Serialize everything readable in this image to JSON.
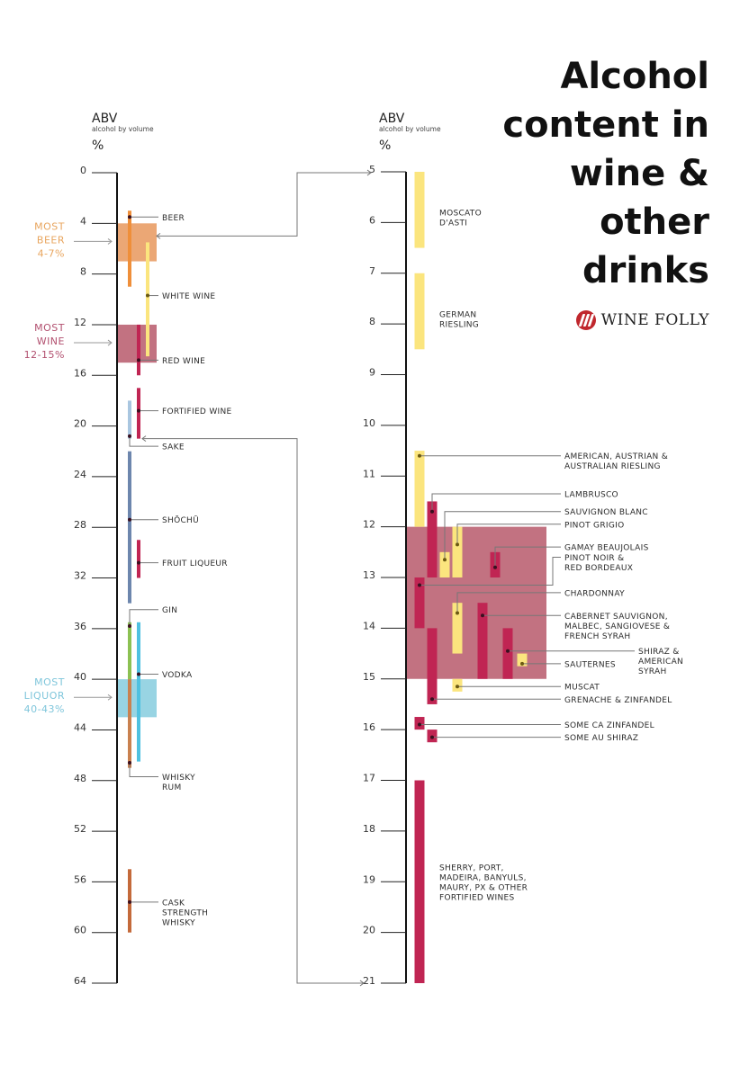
{
  "title_lines": [
    "Alcohol",
    "content in",
    "wine &",
    "other",
    "drinks"
  ],
  "brand": "WINE FOLLY",
  "colors": {
    "axis": "#111111",
    "leader": "#777777",
    "beer": "#ef8f3a",
    "beer_band": "#eba775",
    "white_wine": "#fbe57e",
    "red_wine": "#c02553",
    "wine_band": "#c27281",
    "sake": "#a9c6e0",
    "shochu": "#6d86ad",
    "gin": "#8cc152",
    "vodka": "#4fc1e0",
    "liquor_band": "#98d4e3",
    "whisky": "#c9814f",
    "cask": "#c46a3b",
    "most_beer_text": "#e8a55e",
    "most_wine_text": "#b2506f",
    "most_liquor_text": "#7fc6db",
    "logo": "#c0272d"
  },
  "chart_data": [
    {
      "type": "range-bar",
      "name": "all-drinks",
      "axis_header": {
        "title": "ABV",
        "subtitle": "alcohol by volume",
        "unit": "%"
      },
      "ylim": [
        0,
        64
      ],
      "ticks": [
        0,
        4,
        8,
        12,
        16,
        20,
        24,
        28,
        32,
        36,
        40,
        44,
        48,
        52,
        56,
        60,
        64
      ],
      "bands": [
        {
          "label_lines": [
            "MOST",
            "BEER",
            "4-7%"
          ],
          "range": [
            4,
            7
          ],
          "color_key": "beer_band",
          "text_color_key": "most_beer_text"
        },
        {
          "label_lines": [
            "MOST",
            "WINE",
            "12-15%"
          ],
          "range": [
            12,
            15
          ],
          "color_key": "wine_band",
          "text_color_key": "most_wine_text"
        },
        {
          "label_lines": [
            "MOST",
            "LIQUOR",
            "40-43%"
          ],
          "range": [
            40,
            43
          ],
          "color_key": "liquor_band",
          "text_color_key": "most_liquor_text"
        }
      ],
      "series": [
        {
          "label": [
            "BEER"
          ],
          "range": [
            3,
            9
          ],
          "col": 0,
          "color_key": "beer",
          "dot": 3.5,
          "label_at": 3.5
        },
        {
          "label": [
            "WHITE WINE"
          ],
          "range": [
            5.5,
            14.5
          ],
          "col": 1,
          "color_key": "white_wine",
          "dot": 9.7,
          "label_at": 9.7
        },
        {
          "label": [
            "RED WINE"
          ],
          "range": [
            12,
            16
          ],
          "col": 2,
          "color_key": "red_wine",
          "dot": 14.8,
          "label_at": 14.8
        },
        {
          "label": [
            "FORTIFIED WINE"
          ],
          "range": [
            17,
            21
          ],
          "col": 2,
          "color_key": "red_wine",
          "dot": 18.8,
          "label_at": 18.8
        },
        {
          "label": [
            "SAKE"
          ],
          "range": [
            18,
            21
          ],
          "col": 0,
          "color_key": "sake",
          "dot": 20.8,
          "label_at": 21.6,
          "elbow": true
        },
        {
          "label": [
            "SHŌCHŪ"
          ],
          "range": [
            22,
            34
          ],
          "col": 0,
          "color_key": "shochu",
          "dot": 27.4,
          "label_at": 27.4
        },
        {
          "label": [
            "FRUIT LIQUEUR"
          ],
          "range": [
            29,
            32
          ],
          "col": 2,
          "color_key": "red_wine",
          "dot": 30.8,
          "label_at": 30.8
        },
        {
          "label": [
            "GIN"
          ],
          "range": [
            35.5,
            47
          ],
          "col": 0,
          "color_key": "gin",
          "dot": 35.8,
          "label_at": 34.5,
          "elbow": true,
          "split_at": 40,
          "split_color_key": "whisky"
        },
        {
          "label": [
            "VODKA"
          ],
          "range": [
            35.5,
            46.5
          ],
          "col": 2,
          "color_key": "vodka",
          "dot": 39.6,
          "label_at": 39.6
        },
        {
          "label": [
            "WHISKY",
            "RUM"
          ],
          "range": [
            40,
            47
          ],
          "col": 0,
          "color_key": "whisky",
          "dot": 46.6,
          "label_at": 47.7,
          "elbow": true,
          "hidden_bar": true
        },
        {
          "label": [
            "CASK",
            "STRENGTH",
            "WHISKY"
          ],
          "range": [
            55,
            60
          ],
          "col": 0,
          "color_key": "cask",
          "dot": 57.6,
          "label_at": 57.6
        }
      ]
    },
    {
      "type": "range-bar",
      "name": "wine-detail",
      "axis_header": {
        "title": "ABV",
        "subtitle": "alcohol by volume",
        "unit": "%"
      },
      "ylim": [
        5,
        21
      ],
      "ticks": [
        5,
        6,
        7,
        8,
        9,
        10,
        11,
        12,
        13,
        14,
        15,
        16,
        17,
        18,
        19,
        20,
        21
      ],
      "bands": [
        {
          "range": [
            12,
            15
          ],
          "color_key": "wine_band"
        }
      ],
      "series": [
        {
          "label": [
            "MOSCATO",
            "D'ASTI"
          ],
          "range": [
            5,
            6.5
          ],
          "col": 0,
          "color_key": "white_wine",
          "label_at": 5.9,
          "label_x": "near"
        },
        {
          "label": [
            "GERMAN",
            "RIESLING"
          ],
          "range": [
            7,
            8.5
          ],
          "col": 0,
          "color_key": "white_wine",
          "label_at": 7.9,
          "label_x": "near"
        },
        {
          "label": [
            "AMERICAN, AUSTRIAN &",
            "AUSTRALIAN RIESLING"
          ],
          "range": [
            10.5,
            12
          ],
          "col": 0,
          "color_key": "white_wine",
          "dot": 10.6,
          "label_at": 10.6
        },
        {
          "label": [
            "LAMBRUSCO"
          ],
          "range": [
            11.5,
            13
          ],
          "col": 1,
          "color_key": "red_wine",
          "dot": 11.7,
          "label_at": 11.35,
          "elbow": true
        },
        {
          "label": [
            "SAUVIGNON BLANC"
          ],
          "range": [
            12.5,
            13
          ],
          "col": 2,
          "color_key": "white_wine",
          "dot": 12.65,
          "label_at": 11.7,
          "elbow": true
        },
        {
          "label": [
            "PINOT GRIGIO"
          ],
          "range": [
            12,
            13
          ],
          "col": 3,
          "color_key": "white_wine",
          "dot": 12.35,
          "label_at": 11.95,
          "elbow": true
        },
        {
          "label": [
            "GAMAY BEAUJOLAIS"
          ],
          "range": [
            12.5,
            13
          ],
          "col": 6,
          "color_key": "red_wine",
          "dot": 12.8,
          "label_at": 12.4,
          "elbow": true
        },
        {
          "label": [
            "PINOT NOIR &",
            "RED BORDEAUX"
          ],
          "range": [
            13,
            14
          ],
          "col": 0,
          "color_key": "red_wine",
          "dot": 13.15,
          "label_at": 12.6,
          "elbow": true,
          "elbow_x": 614
        },
        {
          "label": [
            "CHARDONNAY"
          ],
          "range": [
            13.5,
            14.5
          ],
          "col": 3,
          "color_key": "white_wine",
          "dot": 13.7,
          "label_at": 13.3,
          "elbow": true
        },
        {
          "label": [
            "CABERNET SAUVIGNON,",
            "MALBEC, SANGIOVESE &",
            "FRENCH SYRAH"
          ],
          "range": [
            13.5,
            15
          ],
          "col": 5,
          "color_key": "red_wine",
          "dot": 13.75,
          "label_at": 13.75
        },
        {
          "label": [
            "SHIRAZ &",
            "AMERICAN",
            "SYRAH"
          ],
          "range": [
            14,
            15
          ],
          "col": 7,
          "color_key": "red_wine",
          "dot": 14.45,
          "label_at": 14.45,
          "label_x": "far"
        },
        {
          "label": [
            "SAUTERNES"
          ],
          "range": [
            14.5,
            14.75
          ],
          "col": 8,
          "color_key": "white_wine",
          "dot": 14.7,
          "label_at": 14.7
        },
        {
          "label": [
            "MUSCAT"
          ],
          "range": [
            15,
            15.25
          ],
          "col": 3,
          "color_key": "white_wine",
          "dot": 15.15,
          "label_at": 15.15
        },
        {
          "label": [
            "GRENACHE & ZINFANDEL"
          ],
          "range": [
            14,
            15.5
          ],
          "col": 1,
          "color_key": "red_wine",
          "dot": 15.4,
          "label_at": 15.4
        },
        {
          "label": [
            "SOME CA ZINFANDEL"
          ],
          "range": [
            15.75,
            16
          ],
          "col": 0,
          "color_key": "red_wine",
          "dot": 15.9,
          "label_at": 15.9
        },
        {
          "label": [
            "SOME AU SHIRAZ"
          ],
          "range": [
            16,
            16.25
          ],
          "col": 1,
          "color_key": "red_wine",
          "dot": 16.15,
          "label_at": 16.15
        },
        {
          "label": [
            "SHERRY, PORT,",
            "MADEIRA, BANYULS,",
            "MAURY, PX & OTHER",
            "FORTIFIED WINES"
          ],
          "range": [
            17,
            21
          ],
          "col": 0,
          "color_key": "red_wine",
          "label_at": 19,
          "label_x": "near"
        }
      ]
    }
  ]
}
